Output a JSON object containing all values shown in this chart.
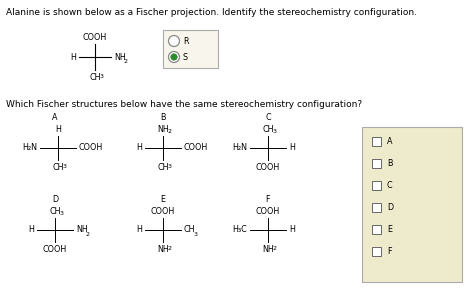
{
  "title": "Alanine is shown below as a Fischer projection. Identify the stereochemistry configuration.",
  "question2": "Which Fischer structures below have the same stereochemistry configuration?",
  "bg_color": "#ffffff",
  "text_color": "#000000",
  "checkbox_bg": "#eeeacc",
  "radio_bg": "#f8f6ec",
  "radio_border": "#999999",
  "checkboxes": [
    "A",
    "B",
    "C",
    "D",
    "E",
    "F"
  ],
  "font_size": 6.5,
  "small_font": 5.8,
  "sub_font": 4.5
}
